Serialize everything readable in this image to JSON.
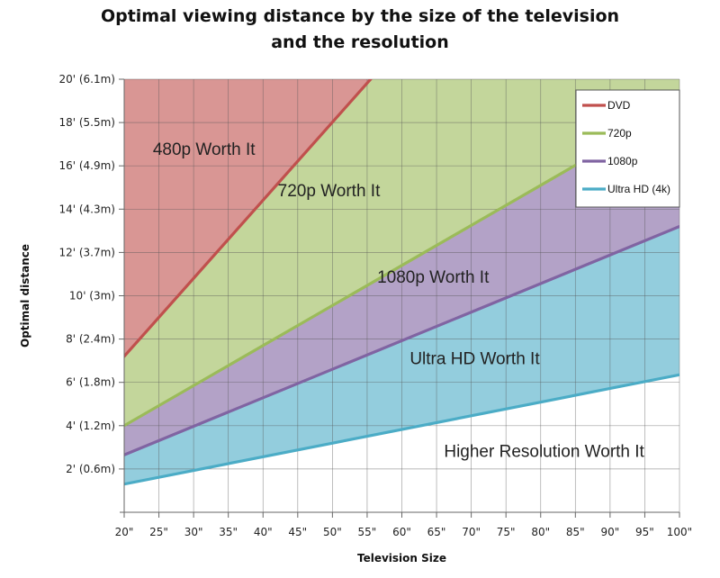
{
  "chart_data": {
    "type": "area",
    "title": [
      "Optimal viewing distance by the size of the television",
      "and the resolution"
    ],
    "xlabel": "Television Size",
    "ylabel": "Optimal distance",
    "x_range": [
      20,
      100
    ],
    "y_range": [
      0,
      20
    ],
    "x_ticks": [
      {
        "value": 20,
        "label": "20\""
      },
      {
        "value": 25,
        "label": "25\""
      },
      {
        "value": 30,
        "label": "30\""
      },
      {
        "value": 35,
        "label": "35\""
      },
      {
        "value": 40,
        "label": "40\""
      },
      {
        "value": 45,
        "label": "45\""
      },
      {
        "value": 50,
        "label": "50\""
      },
      {
        "value": 55,
        "label": "55\""
      },
      {
        "value": 60,
        "label": "60\""
      },
      {
        "value": 65,
        "label": "65\""
      },
      {
        "value": 70,
        "label": "70\""
      },
      {
        "value": 75,
        "label": "75\""
      },
      {
        "value": 80,
        "label": "80\""
      },
      {
        "value": 85,
        "label": "85\""
      },
      {
        "value": 90,
        "label": "90\""
      },
      {
        "value": 95,
        "label": "95\""
      },
      {
        "value": 100,
        "label": "100\""
      }
    ],
    "y_ticks": [
      {
        "value": 2,
        "label": "2' (0.6m)"
      },
      {
        "value": 4,
        "label": "4' (1.2m)"
      },
      {
        "value": 6,
        "label": "6' (1.8m)"
      },
      {
        "value": 8,
        "label": "8' (2.4m)"
      },
      {
        "value": 10,
        "label": "10' (3m)"
      },
      {
        "value": 12,
        "label": "12' (3.7m)"
      },
      {
        "value": 14,
        "label": "14' (4.3m)"
      },
      {
        "value": 16,
        "label": "16' (4.9m)"
      },
      {
        "value": 18,
        "label": "18' (5.5m)"
      },
      {
        "value": 20,
        "label": "20' (6.1m)"
      }
    ],
    "grid": true,
    "legend_position": "top-right",
    "series": [
      {
        "name": "DVD",
        "color": "#c0504d",
        "fill": "#d99694",
        "x": [
          20,
          55.5
        ],
        "y": [
          7.2,
          20
        ]
      },
      {
        "name": "720p",
        "color": "#9bbb59",
        "fill": "#c3d69b",
        "x": [
          20,
          100
        ],
        "y": [
          4.0,
          18.8
        ]
      },
      {
        "name": "1080p",
        "color": "#8064a2",
        "fill": "#b3a2c7",
        "x": [
          20,
          100
        ],
        "y": [
          2.65,
          13.2
        ]
      },
      {
        "name": "Ultra HD (4k)",
        "color": "#4bacc6",
        "fill": "#93cddd",
        "x": [
          20,
          100
        ],
        "y": [
          1.3,
          6.35
        ]
      }
    ],
    "annotations": [
      {
        "text": "480p Worth It",
        "x": 31.5,
        "y": 16.5
      },
      {
        "text": "720p Worth It",
        "x": 49.5,
        "y": 14.6
      },
      {
        "text": "1080p Worth It",
        "x": 64.5,
        "y": 10.6
      },
      {
        "text": "Ultra HD Worth It",
        "x": 70.5,
        "y": 6.85
      },
      {
        "text": "Higher Resolution Worth It",
        "x": 80.5,
        "y": 2.55
      }
    ]
  }
}
